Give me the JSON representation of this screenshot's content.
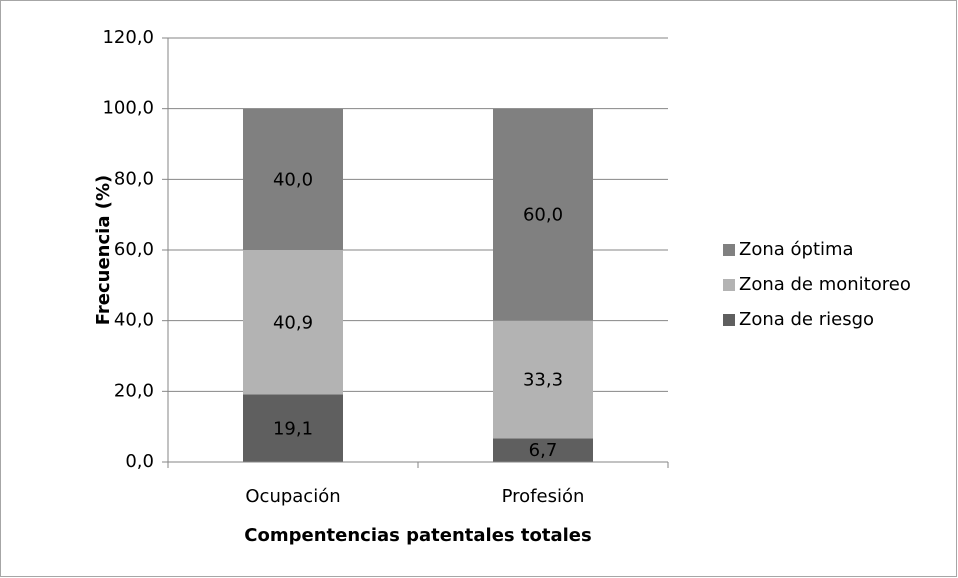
{
  "chart_data": {
    "type": "stacked_bar",
    "y_label": "Frecuencia (%)",
    "x_label": "Compentencias patentales totales",
    "categories": [
      "Ocupación",
      "Profesión"
    ],
    "series": [
      {
        "name": "Zona de riesgo",
        "color": "#5f5f5f",
        "values": [
          19.1,
          6.7
        ],
        "value_labels": [
          "19,1",
          "6,7"
        ]
      },
      {
        "name": "Zona de monitoreo",
        "color": "#b3b3b3",
        "values": [
          40.9,
          33.3
        ],
        "value_labels": [
          "40,9",
          "33,3"
        ]
      },
      {
        "name": "Zona óptima",
        "color": "#808080",
        "values": [
          40.0,
          60.0
        ],
        "value_labels": [
          "40,0",
          "60,0"
        ]
      }
    ],
    "ylim": [
      0,
      120
    ],
    "yticks": [
      {
        "value": 0,
        "label": "0,0"
      },
      {
        "value": 20,
        "label": "20,0"
      },
      {
        "value": 40,
        "label": "40,0"
      },
      {
        "value": 60,
        "label": "60,0"
      },
      {
        "value": 80,
        "label": "80,0"
      },
      {
        "value": 100,
        "label": "100,0"
      },
      {
        "value": 120,
        "label": "120,0"
      }
    ],
    "grid": true,
    "legend": "right"
  }
}
